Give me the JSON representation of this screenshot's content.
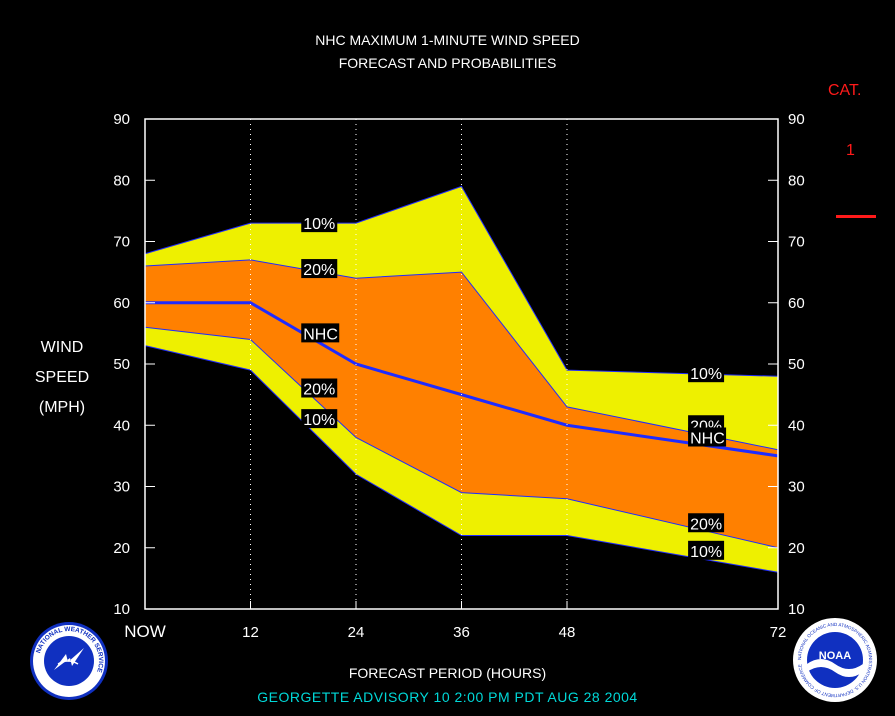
{
  "header": {
    "title_line1": "NHC MAXIMUM 1-MINUTE WIND SPEED",
    "title_line2": "FORECAST AND PROBABILITIES"
  },
  "axes": {
    "ylabel_lines": [
      "WIND",
      "SPEED",
      "(MPH)"
    ],
    "xlabel": "FORECAST PERIOD (HOURS)"
  },
  "category": {
    "label": "CAT.",
    "value": "1",
    "line_color": "#ff1a1a"
  },
  "footer": {
    "advisory": "GEORGETTE   ADVISORY  10 2:00  PM  PDT  AUG 28 2004"
  },
  "logos": {
    "left": "nws-logo-icon",
    "left_text": "NATIONAL WEATHER SERVICE",
    "right": "noaa-logo-icon",
    "right_text": "NOAA",
    "right_ring_text": "NATIONAL OCEANIC AND ATMOSPHERIC ADMINISTRATION U.S. DEPARTMENT OF COMMERCE"
  },
  "colors": {
    "outer_band": "#eef000",
    "inner_band": "#ff8000",
    "forecast_line": "#1f2bff",
    "grid": "#ffffff"
  },
  "chart_data": {
    "type": "area",
    "x": [
      0,
      12,
      24,
      36,
      48,
      72
    ],
    "x_tick_labels": [
      "NOW",
      "12",
      "24",
      "36",
      "48",
      "72"
    ],
    "xlim": [
      0,
      72
    ],
    "ylim": [
      10,
      90
    ],
    "y_ticks": [
      10,
      20,
      30,
      40,
      50,
      60,
      70,
      80,
      90
    ],
    "grid": "vertical dotted at x ticks",
    "series": [
      {
        "name": "10%",
        "role": "upper_10",
        "values": [
          68,
          73,
          73,
          79,
          49,
          48
        ]
      },
      {
        "name": "20%",
        "role": "upper_20",
        "values": [
          66,
          67,
          64,
          65,
          43,
          36
        ]
      },
      {
        "name": "NHC",
        "role": "forecast",
        "values": [
          60,
          60,
          50,
          45,
          40,
          35
        ]
      },
      {
        "name": "20%",
        "role": "lower_20",
        "values": [
          56,
          54,
          38,
          29,
          28,
          20
        ]
      },
      {
        "name": "10%",
        "role": "lower_10",
        "values": [
          53,
          49,
          32,
          22,
          22,
          16
        ]
      }
    ],
    "curve_labels": [
      {
        "text": "10%",
        "x": 18,
        "y": 73
      },
      {
        "text": "20%",
        "x": 18,
        "y": 65.5
      },
      {
        "text": "NHC",
        "x": 18,
        "y": 55
      },
      {
        "text": "20%",
        "x": 18,
        "y": 46
      },
      {
        "text": "10%",
        "x": 18,
        "y": 41
      },
      {
        "text": "10%",
        "x": 62,
        "y": 48.5
      },
      {
        "text": "20%",
        "x": 62,
        "y": 40
      },
      {
        "text": "NHC",
        "x": 62,
        "y": 38
      },
      {
        "text": "20%",
        "x": 62,
        "y": 24
      },
      {
        "text": "10%",
        "x": 62,
        "y": 19.5
      }
    ]
  }
}
